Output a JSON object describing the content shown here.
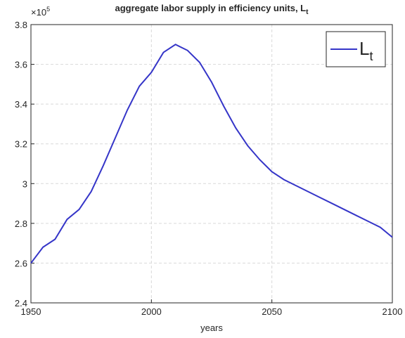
{
  "chart_data": {
    "type": "line",
    "title": "aggregate labor supply in efficiency units, L",
    "title_subscript": "t",
    "x_label": "years",
    "y_multiplier": "×10",
    "y_multiplier_exponent": "5",
    "x": [
      1950,
      1955,
      1960,
      1965,
      1970,
      1975,
      1980,
      1985,
      1990,
      1995,
      2000,
      2005,
      2010,
      2015,
      2020,
      2025,
      2030,
      2035,
      2040,
      2045,
      2050,
      2055,
      2060,
      2065,
      2070,
      2075,
      2080,
      2085,
      2090,
      2095,
      2100
    ],
    "series": [
      {
        "name": "L",
        "name_subscript": "t",
        "color": "#3535c8",
        "values": [
          2.6,
          2.68,
          2.72,
          2.82,
          2.87,
          2.96,
          3.09,
          3.23,
          3.37,
          3.49,
          3.56,
          3.66,
          3.7,
          3.67,
          3.61,
          3.51,
          3.39,
          3.28,
          3.19,
          3.12,
          3.06,
          3.02,
          2.99,
          2.96,
          2.93,
          2.9,
          2.87,
          2.84,
          2.81,
          2.78,
          2.73
        ]
      }
    ],
    "xlim": [
      1950,
      2100
    ],
    "xticks": [
      1950,
      2000,
      2050,
      2100
    ],
    "ylim": [
      2.4,
      3.8
    ],
    "yticks": [
      2.4,
      2.6,
      2.8,
      3,
      3.2,
      3.4,
      3.6,
      3.8
    ],
    "grid": true,
    "legend": "northeast"
  }
}
